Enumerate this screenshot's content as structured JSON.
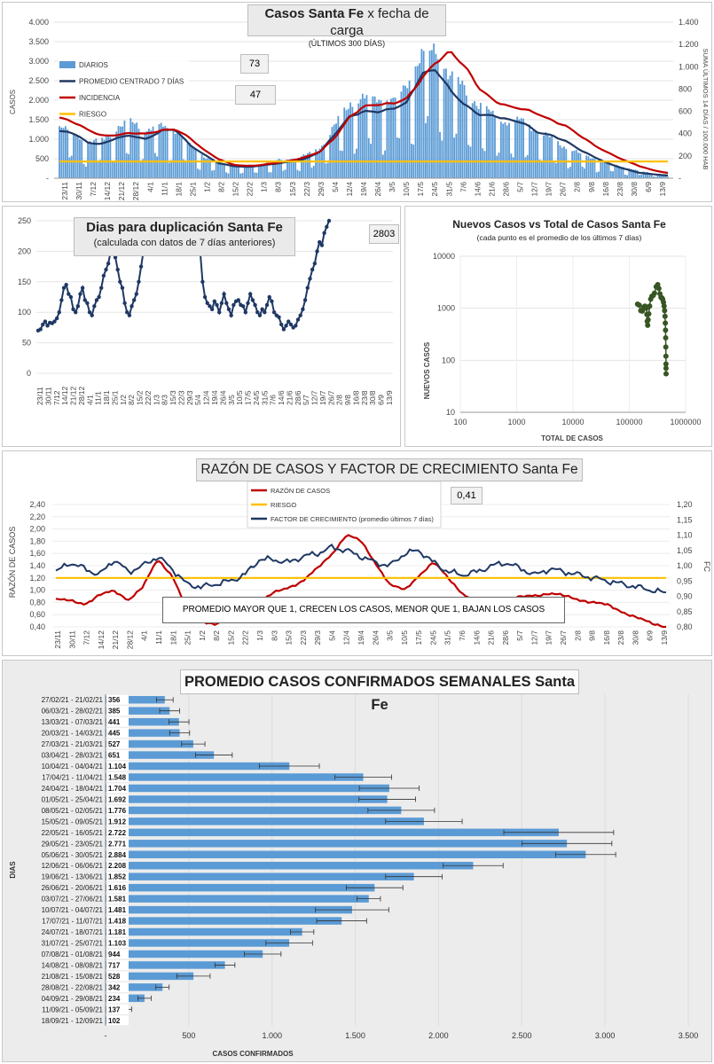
{
  "chart_data": [
    {
      "type": "bar+line",
      "title": "Casos Santa Fe",
      "title_suffix": "x fecha de carga",
      "subtitle": "(ÚLTIMOS 300 DÍAS)",
      "ylabel": "CASOS",
      "y2label": "SUMA ÚLTIMOS 14 DÍAS / 100.000 HAB",
      "ylim": [
        0,
        4000
      ],
      "y2lim": [
        0,
        1400
      ],
      "yticks": [
        "-",
        "500",
        "1.000",
        "1.500",
        "2.000",
        "2.500",
        "3.000",
        "3.500",
        "4.000"
      ],
      "y2ticks": [
        "-",
        "200",
        "400",
        "600",
        "800",
        "1.000",
        "1.200",
        "1.400"
      ],
      "xticks": [
        "23/11",
        "30/11",
        "7/12",
        "14/12",
        "21/12",
        "28/12",
        "4/1",
        "11/1",
        "18/1",
        "25/1",
        "1/2",
        "8/2",
        "15/2",
        "22/2",
        "1/3",
        "8/3",
        "15/3",
        "22/3",
        "29/3",
        "5/4",
        "12/4",
        "19/4",
        "26/4",
        "3/5",
        "10/5",
        "17/5",
        "24/5",
        "31/5",
        "7/6",
        "14/6",
        "21/6",
        "28/6",
        "5/7",
        "12/7",
        "19/7",
        "26/7",
        "2/8",
        "9/8",
        "16/8",
        "23/8",
        "30/8",
        "6/9",
        "13/9"
      ],
      "legend": [
        "DIARIOS",
        "PROMEDIO CENTRADO 7 DÍAS",
        "INCIDENCIA",
        "RIESGO"
      ],
      "legend_position": "top-left",
      "current_daily": "73",
      "current_incidence": "47",
      "series": [
        {
          "name": "DIARIOS",
          "kind": "bar",
          "color": "#5b9bd5",
          "weekly_level": [
            1150,
            1050,
            800,
            900,
            1150,
            1300,
            1100,
            1200,
            1100,
            750,
            500,
            350,
            300,
            280,
            330,
            400,
            450,
            520,
            700,
            1200,
            1700,
            1850,
            1800,
            1800,
            2100,
            2900,
            2850,
            2400,
            2000,
            1700,
            1400,
            1300,
            1300,
            1100,
            900,
            700,
            550,
            450,
            350,
            250,
            170,
            110,
            80
          ]
        },
        {
          "name": "PROMEDIO CENTRADO 7 DÍAS",
          "kind": "line",
          "color": "#1f3864",
          "weekly": [
            1200,
            1150,
            900,
            880,
            1050,
            1100,
            1000,
            1220,
            1250,
            850,
            600,
            380,
            310,
            290,
            330,
            380,
            430,
            500,
            680,
            1120,
            1560,
            1700,
            1700,
            1780,
            1950,
            2700,
            2800,
            2250,
            1870,
            1620,
            1590,
            1490,
            1420,
            1180,
            1100,
            950,
            720,
            530,
            360,
            240,
            140,
            100,
            70
          ]
        },
        {
          "name": "INCIDENCIA",
          "kind": "line",
          "axis": "right",
          "color": "#c00000",
          "weekly": [
            540,
            500,
            430,
            380,
            390,
            410,
            400,
            430,
            440,
            360,
            250,
            170,
            120,
            110,
            120,
            140,
            160,
            190,
            240,
            360,
            540,
            640,
            660,
            670,
            720,
            900,
            1050,
            1140,
            1000,
            800,
            690,
            640,
            620,
            580,
            520,
            470,
            380,
            290,
            220,
            160,
            110,
            70,
            47
          ]
        },
        {
          "name": "RIESGO",
          "kind": "line",
          "axis": "right",
          "color": "#ffc000",
          "constant": 150
        }
      ]
    },
    {
      "type": "line",
      "title": "Dias para duplicación Santa Fe",
      "subtitle": "(calculada con datos de 7 días anteriores)",
      "current_value": "2803",
      "ylim": [
        0,
        250
      ],
      "yticks": [
        "0",
        "50",
        "100",
        "150",
        "200",
        "250"
      ],
      "xticks": [
        "23/11",
        "30/11",
        "7/12",
        "14/12",
        "21/12",
        "28/12",
        "4/1",
        "11/1",
        "18/1",
        "25/1",
        "1/2",
        "8/2",
        "15/2",
        "22/2",
        "1/3",
        "8/3",
        "15/3",
        "22/3",
        "29/3",
        "5/4",
        "12/4",
        "19/4",
        "26/4",
        "3/5",
        "10/5",
        "17/5",
        "24/5",
        "31/5",
        "7/6",
        "14/6",
        "21/6",
        "28/6",
        "5/7",
        "12/7",
        "19/7",
        "26/7",
        "2/8",
        "9/8",
        "16/8",
        "23/8",
        "30/8",
        "6/9",
        "13/9"
      ],
      "series": [
        {
          "segment": 1,
          "color": "#1f3864",
          "values": [
            70,
            72,
            80,
            85,
            78,
            83,
            82,
            85,
            90,
            100,
            120,
            140,
            145,
            130,
            125,
            105,
            100,
            110,
            130,
            140,
            120,
            115,
            100,
            95,
            110,
            120,
            125,
            140,
            160,
            170,
            180,
            200,
            215,
            190,
            170,
            150,
            140,
            115,
            100,
            95,
            110,
            120,
            130,
            150,
            175,
            200,
            230,
            250
          ]
        },
        {
          "segment": 2,
          "color": "#1f3864",
          "values": [
            250,
            200,
            150,
            125,
            115,
            110,
            105,
            118,
            112,
            100,
            115,
            130,
            115,
            105,
            95,
            112,
            118,
            120,
            112,
            110,
            100,
            115,
            130,
            120,
            112,
            100,
            95,
            105,
            100,
            112,
            125,
            118,
            100,
            95,
            92,
            80,
            72,
            78,
            85,
            80,
            75,
            78,
            88,
            95,
            105,
            120,
            140,
            155,
            170,
            180,
            200,
            215,
            210,
            230,
            240,
            250
          ]
        }
      ]
    },
    {
      "type": "scatter",
      "title": "Nuevos Casos vs Total de Casos Santa Fe",
      "subtitle": "(cada punto es el promedio de los últimos 7 días)",
      "xlabel": "TOTAL DE CASOS",
      "ylabel": "NUEVOS CASOS",
      "x_scale": "log",
      "y_scale": "log",
      "xlim": [
        100,
        1000000
      ],
      "ylim": [
        10,
        10000
      ],
      "xticks": [
        "100",
        "1000",
        "10000",
        "100000",
        "1000000"
      ],
      "yticks": [
        "10",
        "100",
        "1000",
        "10000"
      ],
      "color": "#375623",
      "points": [
        {
          "x": 140000,
          "y": 1200
        },
        {
          "x": 150000,
          "y": 1150
        },
        {
          "x": 160000,
          "y": 900
        },
        {
          "x": 170000,
          "y": 880
        },
        {
          "x": 180000,
          "y": 1050
        },
        {
          "x": 190000,
          "y": 1100
        },
        {
          "x": 200000,
          "y": 1000
        },
        {
          "x": 205000,
          "y": 760
        },
        {
          "x": 208000,
          "y": 560
        },
        {
          "x": 212000,
          "y": 470
        },
        {
          "x": 216000,
          "y": 600
        },
        {
          "x": 222000,
          "y": 780
        },
        {
          "x": 230000,
          "y": 1100
        },
        {
          "x": 240000,
          "y": 1500
        },
        {
          "x": 252000,
          "y": 1700
        },
        {
          "x": 265000,
          "y": 1750
        },
        {
          "x": 280000,
          "y": 1950
        },
        {
          "x": 300000,
          "y": 2600
        },
        {
          "x": 320000,
          "y": 2850
        },
        {
          "x": 335000,
          "y": 2400
        },
        {
          "x": 350000,
          "y": 1900
        },
        {
          "x": 365000,
          "y": 1620
        },
        {
          "x": 380000,
          "y": 1580
        },
        {
          "x": 392000,
          "y": 1480
        },
        {
          "x": 405000,
          "y": 1300
        },
        {
          "x": 415000,
          "y": 1100
        },
        {
          "x": 424000,
          "y": 900
        },
        {
          "x": 431000,
          "y": 700
        },
        {
          "x": 436000,
          "y": 520
        },
        {
          "x": 440000,
          "y": 380
        },
        {
          "x": 443000,
          "y": 270
        },
        {
          "x": 445000,
          "y": 180
        },
        {
          "x": 447000,
          "y": 120
        },
        {
          "x": 448000,
          "y": 85
        },
        {
          "x": 449000,
          "y": 70
        },
        {
          "x": 450000,
          "y": 55
        }
      ]
    },
    {
      "type": "line",
      "title": "RAZÓN DE CASOS Y FACTOR DE CRECIMIENTO Santa Fe",
      "ylabel": "RAZÓN DE CASOS",
      "y2label": "FC",
      "current_value": "0,41",
      "annotation": "PROMEDIO MAYOR QUE 1, CRECEN LOS CASOS, MENOR QUE 1, BAJAN LOS CASOS",
      "ylim": [
        0.4,
        2.4
      ],
      "y2lim": [
        0.8,
        1.2
      ],
      "yticks": [
        "0,40",
        "0,60",
        "0,80",
        "1,00",
        "1,20",
        "1,40",
        "1,60",
        "1,80",
        "2,00",
        "2,20",
        "2,40"
      ],
      "y2ticks": [
        "0,80",
        "0,85",
        "0,90",
        "0,95",
        "1,00",
        "1,05",
        "1,10",
        "1,15",
        "1,20"
      ],
      "xticks": [
        "23/11",
        "30/11",
        "7/12",
        "14/12",
        "21/12",
        "28/12",
        "4/1",
        "11/1",
        "18/1",
        "25/1",
        "1/2",
        "8/2",
        "15/2",
        "22/2",
        "1/3",
        "8/3",
        "15/3",
        "22/3",
        "29/3",
        "5/4",
        "12/4",
        "19/4",
        "26/4",
        "3/5",
        "10/5",
        "17/5",
        "24/5",
        "31/5",
        "7/6",
        "14/6",
        "21/6",
        "28/6",
        "5/7",
        "12/7",
        "19/7",
        "26/7",
        "2/8",
        "9/8",
        "16/8",
        "23/8",
        "30/8",
        "6/9",
        "13/9"
      ],
      "legend": [
        "RAZÓN DE CASOS",
        "RIESGO",
        "FACTOR DE CRECIMIENTO (promedio últimos 7 días)"
      ],
      "series": [
        {
          "name": "RAZÓN DE CASOS",
          "color": "#c00000",
          "axis": "left",
          "values": [
            0.85,
            0.82,
            0.78,
            0.92,
            0.98,
            0.85,
            1.05,
            1.5,
            1.25,
            0.7,
            0.5,
            0.45,
            0.55,
            0.68,
            0.8,
            0.95,
            1.05,
            1.15,
            1.35,
            1.6,
            1.9,
            1.8,
            1.45,
            1.08,
            1.0,
            1.25,
            1.45,
            1.2,
            0.95,
            0.78,
            0.8,
            0.85,
            0.88,
            0.92,
            0.95,
            0.9,
            0.85,
            0.8,
            0.75,
            0.65,
            0.55,
            0.45,
            0.41
          ]
        },
        {
          "name": "RIESGO",
          "color": "#ffc000",
          "axis": "left",
          "constant": 1.2
        },
        {
          "name": "FACTOR DE CRECIMIENTO (promedio últimos 7 días)",
          "color": "#1f3864",
          "axis": "right",
          "values": [
            0.98,
            1.01,
            0.99,
            0.97,
            1.02,
            0.98,
            1.0,
            1.03,
            0.99,
            0.94,
            0.93,
            0.94,
            0.95,
            0.97,
            1.02,
            1.02,
            1.01,
            1.03,
            1.04,
            1.06,
            1.05,
            1.03,
            1.01,
            1.0,
            1.04,
            1.05,
            1.01,
            0.98,
            0.97,
            0.98,
            1.0,
            1.01,
            0.99,
            0.97,
            0.99,
            0.98,
            0.97,
            0.96,
            0.95,
            0.94,
            0.93,
            0.92,
            0.91
          ]
        }
      ]
    },
    {
      "type": "bar",
      "orientation": "horizontal",
      "title": "PROMEDIO CASOS CONFIRMADOS SEMANALES Santa Fe",
      "xlabel": "CASOS CONFIRMADOS",
      "ylabel": "DIAS",
      "xlim": [
        0,
        3500
      ],
      "xticks": [
        "-",
        "500",
        "1.000",
        "1.500",
        "2.000",
        "2.500",
        "3.000",
        "3.500"
      ],
      "color": "#5b9bd5",
      "categories": [
        "27/02/21 - 21/02/21",
        "06/03/21 - 28/02/21",
        "13/03/21 - 07/03/21",
        "20/03/21 - 14/03/21",
        "27/03/21 - 21/03/21",
        "03/04/21 - 28/03/21",
        "10/04/21 - 04/04/21",
        "17/04/21 - 11/04/21",
        "24/04/21 - 18/04/21",
        "01/05/21 - 25/04/21",
        "08/05/21 - 02/05/21",
        "15/05/21 - 09/05/21",
        "22/05/21 - 16/05/21",
        "29/05/21 - 23/05/21",
        "05/06/21 - 30/05/21",
        "12/06/21 - 06/06/21",
        "19/06/21 - 13/06/21",
        "26/06/21 - 20/06/21",
        "03/07/21 - 27/06/21",
        "10/07/21 - 04/07/21",
        "17/07/21 - 11/07/21",
        "24/07/21 - 18/07/21",
        "31/07/21 - 25/07/21",
        "07/08/21 - 01/08/21",
        "14/08/21 - 08/08/21",
        "21/08/21 - 15/08/21",
        "28/08/21 - 22/08/21",
        "04/09/21 - 29/08/21",
        "11/09/21 - 05/09/21",
        "18/09/21 - 12/09/21"
      ],
      "labels": [
        "356",
        "385",
        "441",
        "445",
        "527",
        "651",
        "1.104",
        "1.548",
        "1.704",
        "1.692",
        "1.776",
        "1.912",
        "2.722",
        "2.771",
        "2.884",
        "2.208",
        "1.852",
        "1.616",
        "1.581",
        "1.481",
        "1.418",
        "1.181",
        "1.103",
        "944",
        "717",
        "528",
        "342",
        "234",
        "137",
        "102"
      ],
      "values": [
        356,
        385,
        441,
        445,
        527,
        651,
        1104,
        1548,
        1704,
        1692,
        1776,
        1912,
        2722,
        2771,
        2884,
        2208,
        1852,
        1616,
        1581,
        1481,
        1418,
        1181,
        1103,
        944,
        717,
        528,
        342,
        234,
        137,
        102
      ],
      "error": [
        50,
        60,
        60,
        60,
        70,
        110,
        180,
        170,
        180,
        170,
        200,
        230,
        330,
        270,
        180,
        180,
        170,
        170,
        70,
        220,
        150,
        70,
        140,
        110,
        60,
        100,
        40,
        40,
        20,
        15
      ]
    }
  ]
}
